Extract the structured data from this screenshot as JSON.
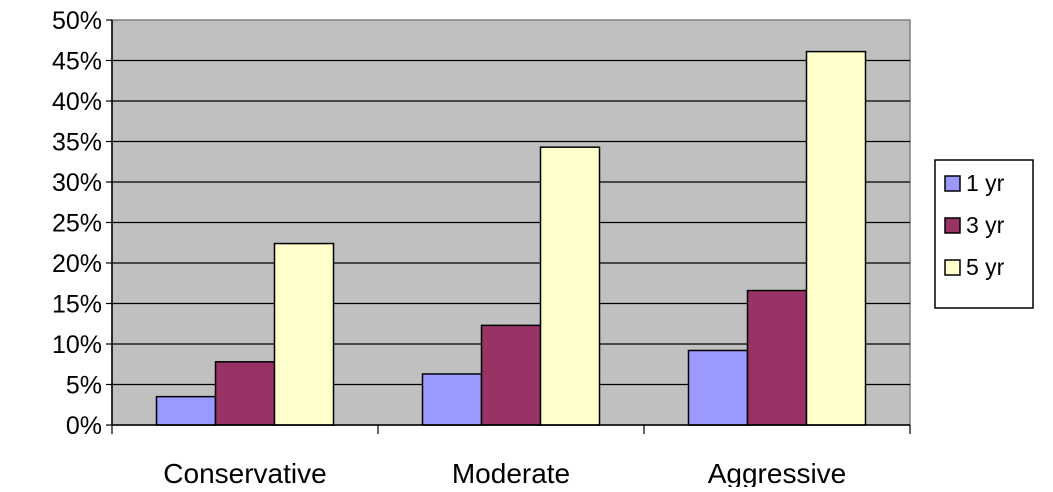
{
  "chart_data": {
    "type": "bar",
    "categories": [
      "Conservative",
      "Moderate",
      "Aggressive"
    ],
    "series": [
      {
        "name": "1 yr",
        "values": [
          3.5,
          6.3,
          9.2
        ],
        "color": "#9999ff"
      },
      {
        "name": "3 yr",
        "values": [
          7.8,
          12.3,
          16.6
        ],
        "color": "#993366"
      },
      {
        "name": "5 yr",
        "values": [
          22.4,
          34.3,
          46.1
        ],
        "color": "#ffffcc"
      }
    ],
    "ylim": [
      0,
      50
    ],
    "ytick_step": 5,
    "ytick_labels": [
      "0%",
      "5%",
      "10%",
      "15%",
      "20%",
      "25%",
      "30%",
      "35%",
      "40%",
      "45%",
      "50%"
    ],
    "grid": true,
    "plot_background": "#c0c0c0",
    "legend_position": "right"
  }
}
